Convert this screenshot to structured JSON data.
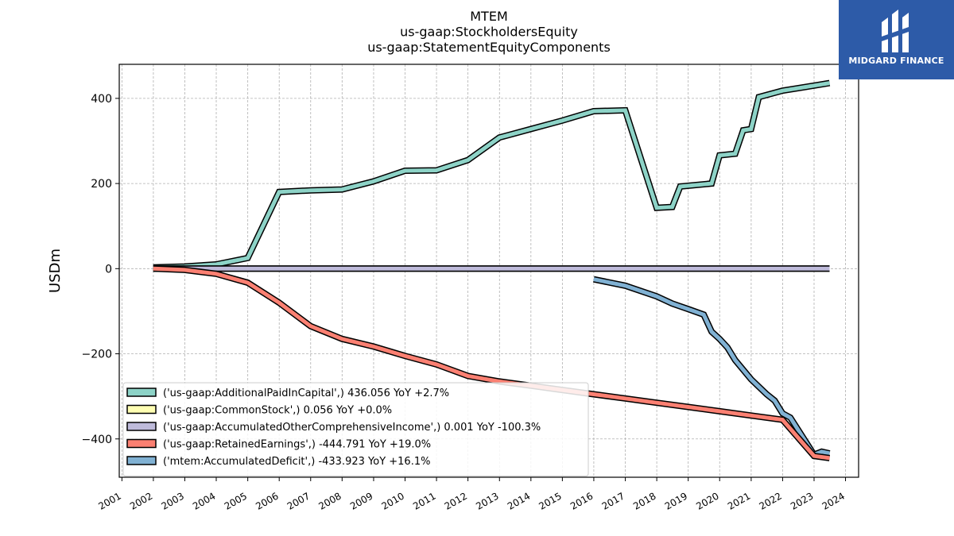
{
  "chart_data": {
    "type": "line",
    "title_lines": [
      "MTEM",
      "us-gaap:StockholdersEquity",
      "us-gaap:StatementEquityComponents"
    ],
    "ylabel": "USDm",
    "xlabel": "",
    "xlim": [
      "2000-12-01",
      "2024-06-01"
    ],
    "ylim": [
      -490,
      480
    ],
    "yticks": [
      400,
      200,
      0,
      -200,
      -400
    ],
    "ytick_labels": [
      "400",
      "200",
      "0",
      "−200",
      "−400"
    ],
    "xticks": [
      "2001-01-01",
      "2002-01-01",
      "2003-01-01",
      "2004-01-01",
      "2005-01-01",
      "2006-01-01",
      "2007-01-01",
      "2008-01-01",
      "2009-01-01",
      "2010-01-01",
      "2011-01-01",
      "2012-01-01",
      "2013-01-01",
      "2014-01-01",
      "2015-01-01",
      "2016-01-01",
      "2017-01-01",
      "2018-01-01",
      "2019-01-01",
      "2020-01-01",
      "2021-01-01",
      "2022-01-01",
      "2023-01-01",
      "2024-01-01"
    ],
    "xtick_labels": [
      "2001",
      "2002",
      "2003",
      "2004",
      "2005",
      "2006",
      "2007",
      "2008",
      "2009",
      "2010",
      "2011",
      "2012",
      "2013",
      "2014",
      "2015",
      "2016",
      "2017",
      "2018",
      "2019",
      "2020",
      "2021",
      "2022",
      "2023",
      "2024"
    ],
    "grid": true,
    "legend_position": "lower-left",
    "series": [
      {
        "name": "('us-gaap:AdditionalPaidInCapital',) 436.056 YoY +2.7%",
        "color": "#8dd3c7",
        "points": [
          [
            "2001-12-31",
            3
          ],
          [
            "2002-12-31",
            5
          ],
          [
            "2003-12-31",
            10
          ],
          [
            "2004-12-31",
            25
          ],
          [
            "2005-12-31",
            180
          ],
          [
            "2006-12-31",
            184
          ],
          [
            "2007-12-31",
            186
          ],
          [
            "2008-12-31",
            205
          ],
          [
            "2009-12-31",
            230
          ],
          [
            "2010-12-31",
            231
          ],
          [
            "2011-12-31",
            255
          ],
          [
            "2012-12-31",
            308
          ],
          [
            "2013-12-31",
            328
          ],
          [
            "2014-12-31",
            348
          ],
          [
            "2015-12-31",
            370
          ],
          [
            "2016-12-31",
            372
          ],
          [
            "2017-12-31",
            143
          ],
          [
            "2018-06-30",
            145
          ],
          [
            "2018-09-30",
            193
          ],
          [
            "2019-09-30",
            200
          ],
          [
            "2019-12-31",
            266
          ],
          [
            "2020-06-30",
            270
          ],
          [
            "2020-09-30",
            325
          ],
          [
            "2020-12-31",
            328
          ],
          [
            "2021-03-31",
            403
          ],
          [
            "2021-12-31",
            418
          ],
          [
            "2022-12-31",
            430
          ],
          [
            "2023-06-30",
            436
          ]
        ]
      },
      {
        "name": "('us-gaap:CommonStock',) 0.056 YoY +0.0%",
        "color": "#ffffb3",
        "points": [
          [
            "2001-12-31",
            0.056
          ],
          [
            "2023-06-30",
            0.056
          ]
        ]
      },
      {
        "name": "('us-gaap:AccumulatedOtherComprehensiveIncome',) 0.001 YoY -100.3%",
        "color": "#bebada",
        "points": [
          [
            "2001-12-31",
            0
          ],
          [
            "2023-06-30",
            0.001
          ]
        ]
      },
      {
        "name": "('us-gaap:RetainedEarnings',) -444.791 YoY +19.0%",
        "color": "#fb8072",
        "points": [
          [
            "2001-12-31",
            0
          ],
          [
            "2002-12-31",
            -3
          ],
          [
            "2003-12-31",
            -12
          ],
          [
            "2004-12-31",
            -33
          ],
          [
            "2005-12-31",
            -80
          ],
          [
            "2006-12-31",
            -135
          ],
          [
            "2007-12-31",
            -165
          ],
          [
            "2008-12-31",
            -183
          ],
          [
            "2009-12-31",
            -205
          ],
          [
            "2010-12-31",
            -225
          ],
          [
            "2011-12-31",
            -252
          ],
          [
            "2012-12-31",
            -265
          ],
          [
            "2013-12-31",
            -275
          ],
          [
            "2014-12-31",
            -285
          ],
          [
            "2015-12-31",
            -295
          ],
          [
            "2016-12-31",
            -305
          ],
          [
            "2017-12-31",
            -315
          ],
          [
            "2018-12-31",
            -325
          ],
          [
            "2019-12-31",
            -335
          ],
          [
            "2020-12-31",
            -345
          ],
          [
            "2021-12-31",
            -355
          ],
          [
            "2022-12-31",
            -440
          ],
          [
            "2023-06-30",
            -445
          ]
        ]
      },
      {
        "name": "('mtem:AccumulatedDeficit',) -433.923 YoY +16.1%",
        "color": "#80b1d3",
        "points": [
          [
            "2015-12-31",
            -25
          ],
          [
            "2016-12-31",
            -40
          ],
          [
            "2017-12-31",
            -65
          ],
          [
            "2018-06-30",
            -82
          ],
          [
            "2018-12-31",
            -95
          ],
          [
            "2019-06-30",
            -108
          ],
          [
            "2019-09-30",
            -148
          ],
          [
            "2019-12-31",
            -165
          ],
          [
            "2020-03-31",
            -185
          ],
          [
            "2020-06-30",
            -215
          ],
          [
            "2020-12-31",
            -260
          ],
          [
            "2021-06-30",
            -295
          ],
          [
            "2021-09-30",
            -310
          ],
          [
            "2021-12-31",
            -340
          ],
          [
            "2022-03-31",
            -350
          ],
          [
            "2022-12-31",
            -437
          ],
          [
            "2023-03-31",
            -430
          ],
          [
            "2023-06-30",
            -434
          ]
        ]
      }
    ]
  },
  "logo": {
    "text": "MIDGARD FINANCE",
    "background": "#2d5ba8",
    "icon": "midgard-logo-icon"
  }
}
